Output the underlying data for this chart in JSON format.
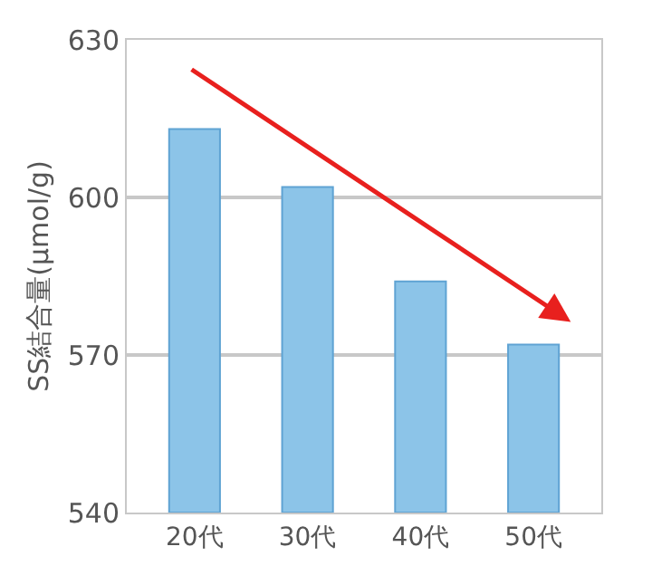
{
  "chart_data": {
    "type": "bar",
    "ylabel": "SS結合量(μmol/g)",
    "categories": [
      "20代",
      "30代",
      "40代",
      "50代"
    ],
    "values": [
      613,
      602,
      584,
      572
    ],
    "color": "#8cc4e8",
    "ylim": [
      540,
      630
    ],
    "yticks": [
      540,
      570,
      600,
      630
    ],
    "grid": "y"
  }
}
